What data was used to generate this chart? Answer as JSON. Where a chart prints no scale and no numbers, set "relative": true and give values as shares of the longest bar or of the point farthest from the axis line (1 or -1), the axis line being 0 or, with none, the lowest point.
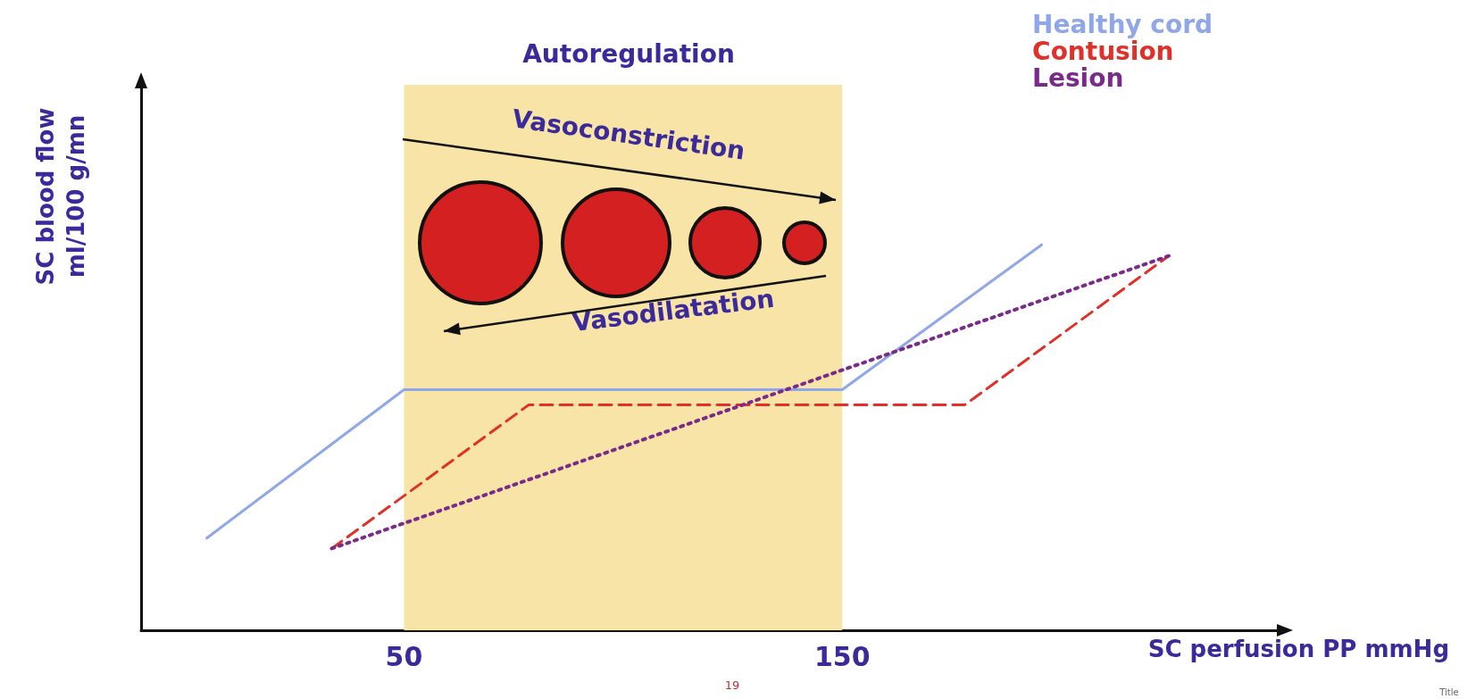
{
  "chart_data": {
    "type": "line",
    "relative": true,
    "xlabel": "SC perfusion PP mmHg",
    "ylabel": "SC blood flow\nml/100 g/mn",
    "xlim": [
      -10,
      250
    ],
    "xticks": [
      50,
      150
    ],
    "grid": false,
    "legend": "top right",
    "marker": "none",
    "bands": [
      {
        "axis": "x",
        "from": 50,
        "to": 150,
        "color": "#f8e4a6"
      }
    ],
    "annotations": [
      "Autoregulation",
      "Vasoconstriction",
      "Vasodilatation",
      "19",
      "Title"
    ],
    "series": [
      {
        "name": "Healthy cord",
        "color": "#8fa6e8",
        "line_style": "solid",
        "x": [
          5,
          50,
          150,
          195.5
        ],
        "values": [
          0.239,
          0.624,
          0.624,
          1
        ]
      },
      {
        "name": "Contusion",
        "color": "#e0302a",
        "line_style": "dashed",
        "x": [
          33.5,
          78.5,
          178,
          224.5
        ],
        "values": [
          0.212,
          0.585,
          0.585,
          0.971
        ]
      },
      {
        "name": "Lesion",
        "color": "#7a2a8a",
        "line_style": "dotted",
        "x": [
          33.5,
          224.5
        ],
        "values": [
          0.212,
          0.971
        ]
      }
    ]
  }
}
